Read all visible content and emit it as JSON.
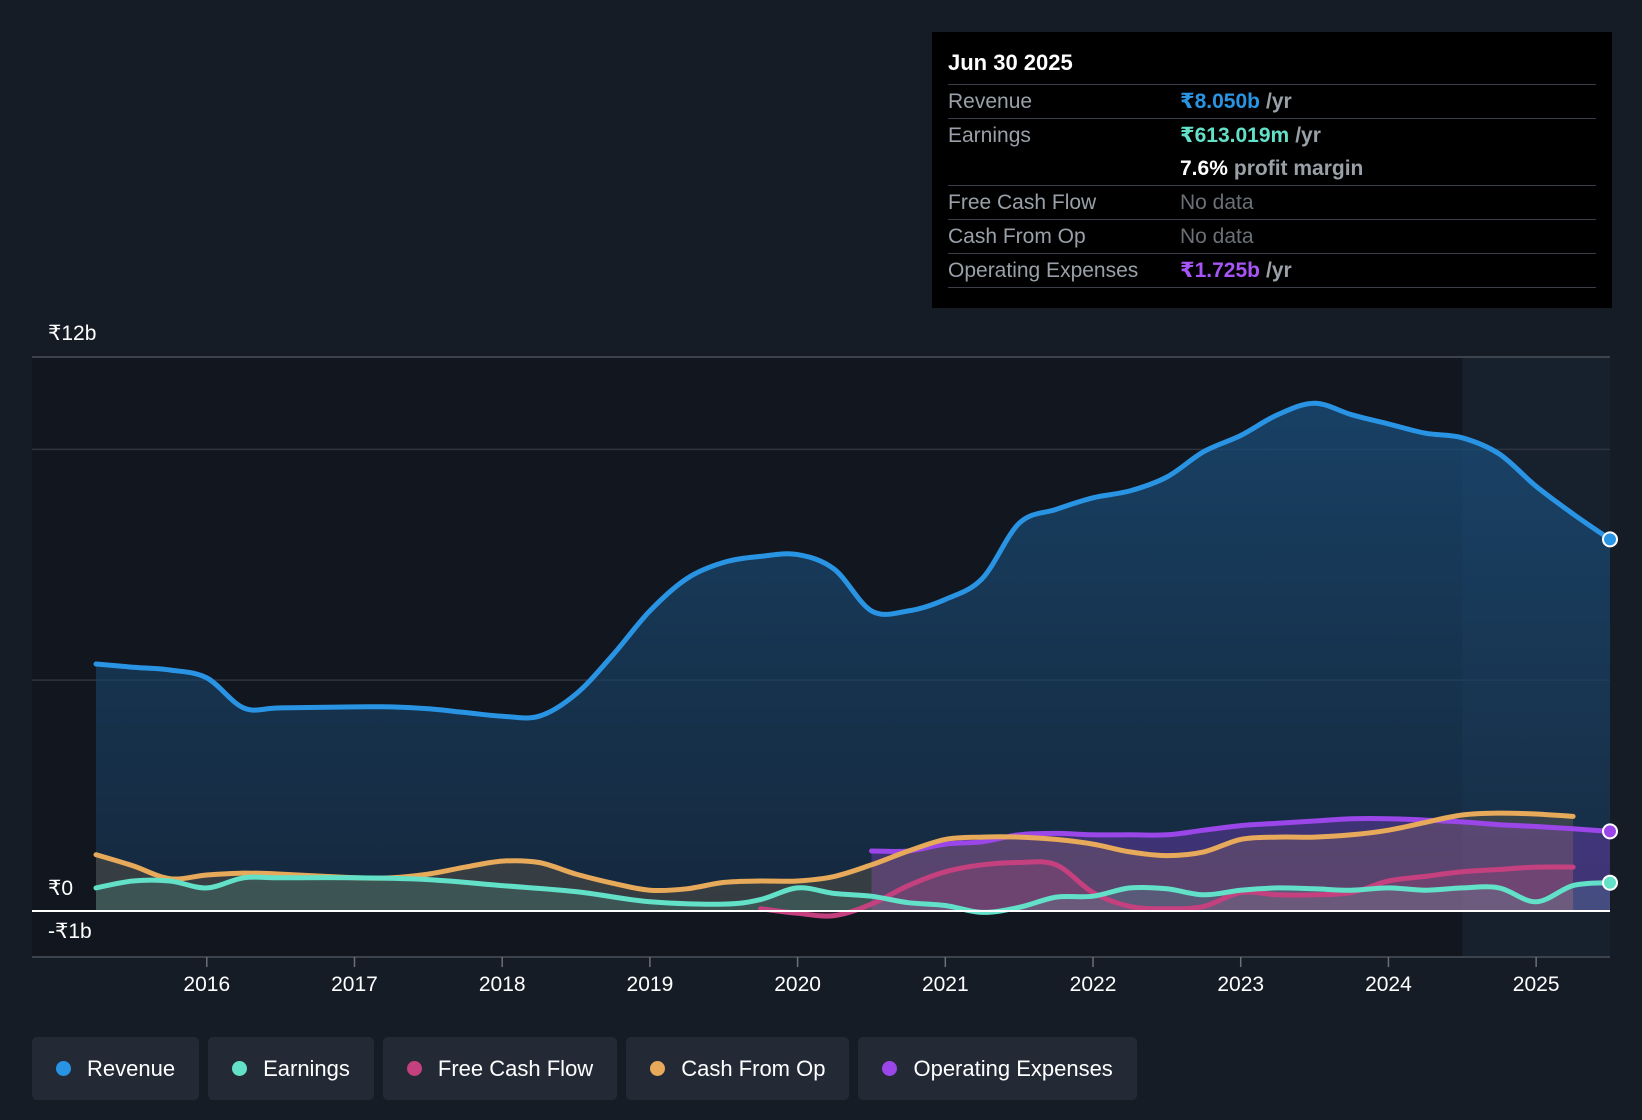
{
  "colors": {
    "revenue": "#2a94e4",
    "earnings": "#63e0c8",
    "free_cash_flow": "#c4407e",
    "cash_from_op": "#e7a95a",
    "operating_expenses": "#9b46e8"
  },
  "tooltip": {
    "date": "Jun 30 2025",
    "rows": {
      "revenue": {
        "label": "Revenue",
        "value": "₹8.050b",
        "unit": "/yr"
      },
      "earnings": {
        "label": "Earnings",
        "value": "₹613.019m",
        "unit": "/yr"
      },
      "margin": {
        "value": "7.6%",
        "label": "profit margin"
      },
      "fcf": {
        "label": "Free Cash Flow",
        "value": "No data"
      },
      "cfo": {
        "label": "Cash From Op",
        "value": "No data"
      },
      "opex": {
        "label": "Operating Expenses",
        "value": "₹1.725b",
        "unit": "/yr"
      }
    }
  },
  "legend": [
    {
      "key": "revenue",
      "label": "Revenue"
    },
    {
      "key": "earnings",
      "label": "Earnings"
    },
    {
      "key": "free_cash_flow",
      "label": "Free Cash Flow"
    },
    {
      "key": "cash_from_op",
      "label": "Cash From Op"
    },
    {
      "key": "operating_expenses",
      "label": "Operating Expenses"
    }
  ],
  "chart_data": {
    "type": "area",
    "title": "",
    "xlabel": "",
    "ylabel": "",
    "x_range": [
      2015.25,
      2025.5
    ],
    "ylim": [
      -1,
      12
    ],
    "y_tick_labels": [
      "₹12b",
      "₹0",
      "-₹1b"
    ],
    "y_ticks": [
      12,
      0,
      -1
    ],
    "gridlines": [
      10,
      5
    ],
    "x_tick_values": [
      2016,
      2017,
      2018,
      2019,
      2020,
      2021,
      2022,
      2023,
      2024,
      2025
    ],
    "x_tick_labels": [
      "2016",
      "2017",
      "2018",
      "2019",
      "2020",
      "2021",
      "2022",
      "2023",
      "2024",
      "2025"
    ],
    "past_data_boundary": 2024.5,
    "series": [
      {
        "key": "revenue",
        "name": "Revenue",
        "x": [
          2015.25,
          2015.5,
          2015.75,
          2016.0,
          2016.25,
          2016.5,
          2017.0,
          2017.25,
          2017.5,
          2017.75,
          2018.0,
          2018.25,
          2018.5,
          2018.75,
          2019.0,
          2019.25,
          2019.5,
          2019.75,
          2020.0,
          2020.25,
          2020.5,
          2020.75,
          2021.0,
          2021.25,
          2021.5,
          2021.75,
          2022.0,
          2022.25,
          2022.5,
          2022.75,
          2023.0,
          2023.25,
          2023.5,
          2023.75,
          2024.0,
          2024.25,
          2024.5,
          2024.75,
          2025.0,
          2025.25,
          2025.5
        ],
        "values": [
          5.35,
          5.28,
          5.22,
          5.05,
          4.4,
          4.4,
          4.42,
          4.42,
          4.38,
          4.3,
          4.22,
          4.22,
          4.7,
          5.55,
          6.5,
          7.2,
          7.55,
          7.68,
          7.72,
          7.4,
          6.5,
          6.5,
          6.75,
          7.2,
          8.4,
          8.7,
          8.95,
          9.1,
          9.4,
          9.95,
          10.3,
          10.75,
          11.0,
          10.75,
          10.55,
          10.35,
          10.25,
          9.9,
          9.2,
          8.6,
          8.05
        ]
      },
      {
        "key": "earnings",
        "name": "Earnings",
        "x": [
          2015.25,
          2015.5,
          2015.75,
          2016.0,
          2016.25,
          2016.5,
          2017.0,
          2017.5,
          2018.0,
          2018.5,
          2019.0,
          2019.5,
          2019.75,
          2020.0,
          2020.25,
          2020.5,
          2020.75,
          2021.0,
          2021.25,
          2021.5,
          2021.75,
          2022.0,
          2022.25,
          2022.5,
          2022.75,
          2023.0,
          2023.25,
          2023.5,
          2023.75,
          2024.0,
          2024.25,
          2024.5,
          2024.75,
          2025.0,
          2025.25,
          2025.5
        ],
        "values": [
          0.5,
          0.65,
          0.65,
          0.5,
          0.72,
          0.72,
          0.72,
          0.68,
          0.55,
          0.42,
          0.2,
          0.15,
          0.25,
          0.5,
          0.38,
          0.32,
          0.18,
          0.12,
          -0.03,
          0.08,
          0.3,
          0.32,
          0.5,
          0.48,
          0.35,
          0.45,
          0.5,
          0.48,
          0.45,
          0.5,
          0.45,
          0.5,
          0.5,
          0.2,
          0.55,
          0.613
        ]
      },
      {
        "key": "free_cash_flow",
        "name": "Free Cash Flow",
        "x": [
          2019.75,
          2020.0,
          2020.25,
          2020.5,
          2020.75,
          2021.0,
          2021.25,
          2021.5,
          2021.75,
          2022.0,
          2022.25,
          2022.5,
          2022.75,
          2023.0,
          2023.25,
          2023.5,
          2023.75,
          2024.0,
          2024.25,
          2024.5,
          2024.75,
          2025.0,
          2025.25
        ],
        "values": [
          0.05,
          -0.05,
          -0.1,
          0.15,
          0.55,
          0.85,
          1.0,
          1.05,
          1.0,
          0.4,
          0.1,
          0.05,
          0.1,
          0.4,
          0.35,
          0.35,
          0.4,
          0.65,
          0.75,
          0.85,
          0.9,
          0.95,
          0.95
        ]
      },
      {
        "key": "cash_from_op",
        "name": "Cash From Op",
        "x": [
          2015.25,
          2015.5,
          2015.75,
          2016.0,
          2016.25,
          2016.5,
          2017.0,
          2017.25,
          2017.5,
          2017.75,
          2018.0,
          2018.25,
          2018.5,
          2018.75,
          2019.0,
          2019.25,
          2019.5,
          2019.75,
          2020.0,
          2020.25,
          2020.5,
          2020.75,
          2021.0,
          2021.25,
          2021.5,
          2021.75,
          2022.0,
          2022.25,
          2022.5,
          2022.75,
          2023.0,
          2023.25,
          2023.5,
          2023.75,
          2024.0,
          2024.25,
          2024.5,
          2024.75,
          2025.0,
          2025.25
        ],
        "values": [
          1.22,
          0.98,
          0.7,
          0.78,
          0.82,
          0.8,
          0.72,
          0.72,
          0.8,
          0.95,
          1.08,
          1.05,
          0.8,
          0.6,
          0.45,
          0.48,
          0.62,
          0.65,
          0.65,
          0.75,
          1.0,
          1.3,
          1.55,
          1.6,
          1.6,
          1.55,
          1.45,
          1.28,
          1.2,
          1.28,
          1.55,
          1.6,
          1.6,
          1.65,
          1.75,
          1.92,
          2.08,
          2.12,
          2.1,
          2.05
        ]
      },
      {
        "key": "operating_expenses",
        "name": "Operating Expenses",
        "x": [
          2020.5,
          2020.75,
          2021.0,
          2021.25,
          2021.5,
          2021.75,
          2022.0,
          2022.25,
          2022.5,
          2022.75,
          2023.0,
          2023.25,
          2023.5,
          2023.75,
          2024.0,
          2024.25,
          2024.5,
          2024.75,
          2025.0,
          2025.25,
          2025.5
        ],
        "values": [
          1.3,
          1.3,
          1.45,
          1.5,
          1.65,
          1.68,
          1.65,
          1.65,
          1.65,
          1.75,
          1.85,
          1.9,
          1.95,
          2.0,
          2.0,
          1.97,
          1.93,
          1.87,
          1.83,
          1.78,
          1.725
        ]
      }
    ]
  }
}
